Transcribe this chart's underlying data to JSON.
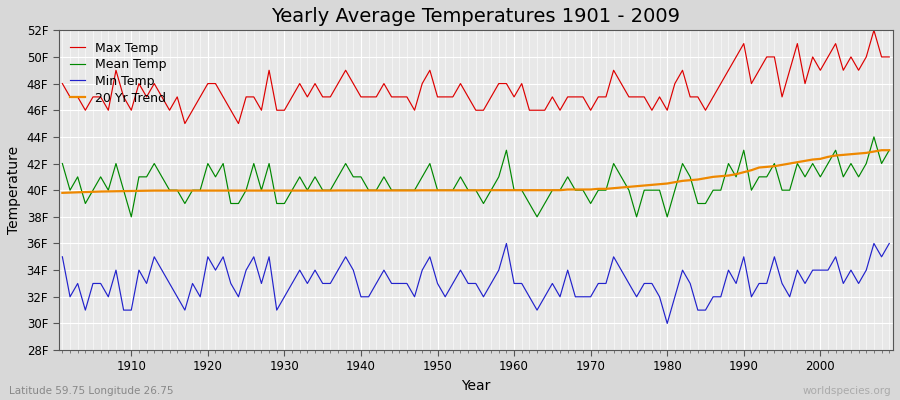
{
  "title": "Yearly Average Temperatures 1901 - 2009",
  "xlabel": "Year",
  "ylabel": "Temperature",
  "lat_lon_label": "Latitude 59.75 Longitude 26.75",
  "watermark": "worldspecies.org",
  "years": [
    1901,
    1902,
    1903,
    1904,
    1905,
    1906,
    1907,
    1908,
    1909,
    1910,
    1911,
    1912,
    1913,
    1914,
    1915,
    1916,
    1917,
    1918,
    1919,
    1920,
    1921,
    1922,
    1923,
    1924,
    1925,
    1926,
    1927,
    1928,
    1929,
    1930,
    1931,
    1932,
    1933,
    1934,
    1935,
    1936,
    1937,
    1938,
    1939,
    1940,
    1941,
    1942,
    1943,
    1944,
    1945,
    1946,
    1947,
    1948,
    1949,
    1950,
    1951,
    1952,
    1953,
    1954,
    1955,
    1956,
    1957,
    1958,
    1959,
    1960,
    1961,
    1962,
    1963,
    1964,
    1965,
    1966,
    1967,
    1968,
    1969,
    1970,
    1971,
    1972,
    1973,
    1974,
    1975,
    1976,
    1977,
    1978,
    1979,
    1980,
    1981,
    1982,
    1983,
    1984,
    1985,
    1986,
    1987,
    1988,
    1989,
    1990,
    1991,
    1992,
    1993,
    1994,
    1995,
    1996,
    1997,
    1998,
    1999,
    2000,
    2001,
    2002,
    2003,
    2004,
    2005,
    2006,
    2007,
    2008,
    2009
  ],
  "max_temp": [
    48,
    47,
    47,
    46,
    47,
    47,
    46,
    49,
    47,
    46,
    48,
    47,
    48,
    47,
    46,
    47,
    45,
    46,
    47,
    48,
    48,
    47,
    46,
    45,
    47,
    47,
    46,
    49,
    46,
    46,
    47,
    48,
    47,
    48,
    47,
    47,
    48,
    49,
    48,
    47,
    47,
    47,
    48,
    47,
    47,
    47,
    46,
    48,
    49,
    47,
    47,
    47,
    48,
    47,
    46,
    46,
    47,
    48,
    48,
    47,
    48,
    46,
    46,
    46,
    47,
    46,
    47,
    47,
    47,
    46,
    47,
    47,
    49,
    48,
    47,
    47,
    47,
    46,
    47,
    46,
    48,
    49,
    47,
    47,
    46,
    47,
    48,
    49,
    50,
    51,
    48,
    49,
    50,
    50,
    47,
    49,
    51,
    48,
    50,
    49,
    50,
    51,
    49,
    50,
    49,
    50,
    52,
    50,
    50
  ],
  "mean_temp": [
    42,
    40,
    41,
    39,
    40,
    41,
    40,
    42,
    40,
    38,
    41,
    41,
    42,
    41,
    40,
    40,
    39,
    40,
    40,
    42,
    41,
    42,
    39,
    39,
    40,
    42,
    40,
    42,
    39,
    39,
    40,
    41,
    40,
    41,
    40,
    40,
    41,
    42,
    41,
    41,
    40,
    40,
    41,
    40,
    40,
    40,
    40,
    41,
    42,
    40,
    40,
    40,
    41,
    40,
    40,
    39,
    40,
    41,
    43,
    40,
    40,
    39,
    38,
    39,
    40,
    40,
    41,
    40,
    40,
    39,
    40,
    40,
    42,
    41,
    40,
    38,
    40,
    40,
    40,
    38,
    40,
    42,
    41,
    39,
    39,
    40,
    40,
    42,
    41,
    43,
    40,
    41,
    41,
    42,
    40,
    40,
    42,
    41,
    42,
    41,
    42,
    43,
    41,
    42,
    41,
    42,
    44,
    42,
    43
  ],
  "min_temp": [
    35,
    32,
    33,
    31,
    33,
    33,
    32,
    34,
    31,
    31,
    34,
    33,
    35,
    34,
    33,
    32,
    31,
    33,
    32,
    35,
    34,
    35,
    33,
    32,
    34,
    35,
    33,
    35,
    31,
    32,
    33,
    34,
    33,
    34,
    33,
    33,
    34,
    35,
    34,
    32,
    32,
    33,
    34,
    33,
    33,
    33,
    32,
    34,
    35,
    33,
    32,
    33,
    34,
    33,
    33,
    32,
    33,
    34,
    36,
    33,
    33,
    32,
    31,
    32,
    33,
    32,
    34,
    32,
    32,
    32,
    33,
    33,
    35,
    34,
    33,
    32,
    33,
    33,
    32,
    30,
    32,
    34,
    33,
    31,
    31,
    32,
    32,
    34,
    33,
    35,
    32,
    33,
    33,
    35,
    33,
    32,
    34,
    33,
    34,
    34,
    34,
    35,
    33,
    34,
    33,
    34,
    36,
    35,
    36
  ],
  "trend": [
    39.8,
    39.82,
    39.84,
    39.86,
    39.88,
    39.9,
    39.91,
    39.92,
    39.93,
    39.94,
    39.95,
    39.96,
    39.97,
    39.97,
    39.97,
    39.97,
    39.97,
    39.97,
    39.97,
    39.97,
    39.97,
    39.97,
    39.97,
    39.97,
    39.97,
    39.97,
    39.97,
    39.97,
    39.97,
    39.97,
    39.97,
    39.97,
    39.97,
    39.97,
    39.97,
    39.97,
    39.98,
    39.98,
    39.98,
    39.98,
    39.98,
    39.98,
    39.98,
    39.98,
    39.98,
    39.98,
    39.98,
    39.99,
    39.99,
    39.99,
    39.99,
    39.99,
    39.99,
    39.99,
    39.99,
    40.0,
    40.0,
    40.0,
    40.0,
    40.0,
    40.0,
    40.0,
    40.0,
    40.0,
    40.0,
    40.0,
    40.05,
    40.05,
    40.05,
    40.05,
    40.1,
    40.1,
    40.15,
    40.2,
    40.25,
    40.3,
    40.35,
    40.4,
    40.45,
    40.5,
    40.6,
    40.7,
    40.75,
    40.8,
    40.9,
    41.0,
    41.05,
    41.1,
    41.2,
    41.35,
    41.5,
    41.7,
    41.75,
    41.8,
    41.9,
    42.0,
    42.1,
    42.2,
    42.3,
    42.35,
    42.5,
    42.6,
    42.65,
    42.7,
    42.75,
    42.8,
    42.9,
    43.0,
    43.0
  ],
  "ylim": [
    28,
    52
  ],
  "yticks": [
    28,
    30,
    32,
    34,
    36,
    38,
    40,
    42,
    44,
    46,
    48,
    50,
    52
  ],
  "ytick_labels": [
    "28F",
    "30F",
    "32F",
    "34F",
    "36F",
    "38F",
    "40F",
    "42F",
    "44F",
    "46F",
    "48F",
    "50F",
    "52F"
  ],
  "bg_color": "#d8d8d8",
  "plot_bg_color": "#e8e8e8",
  "grid_color": "#ffffff",
  "max_color": "#dd0000",
  "mean_color": "#008800",
  "min_color": "#2222cc",
  "trend_color": "#ee8800",
  "title_fontsize": 14,
  "label_fontsize": 10,
  "tick_fontsize": 8.5,
  "legend_fontsize": 9
}
